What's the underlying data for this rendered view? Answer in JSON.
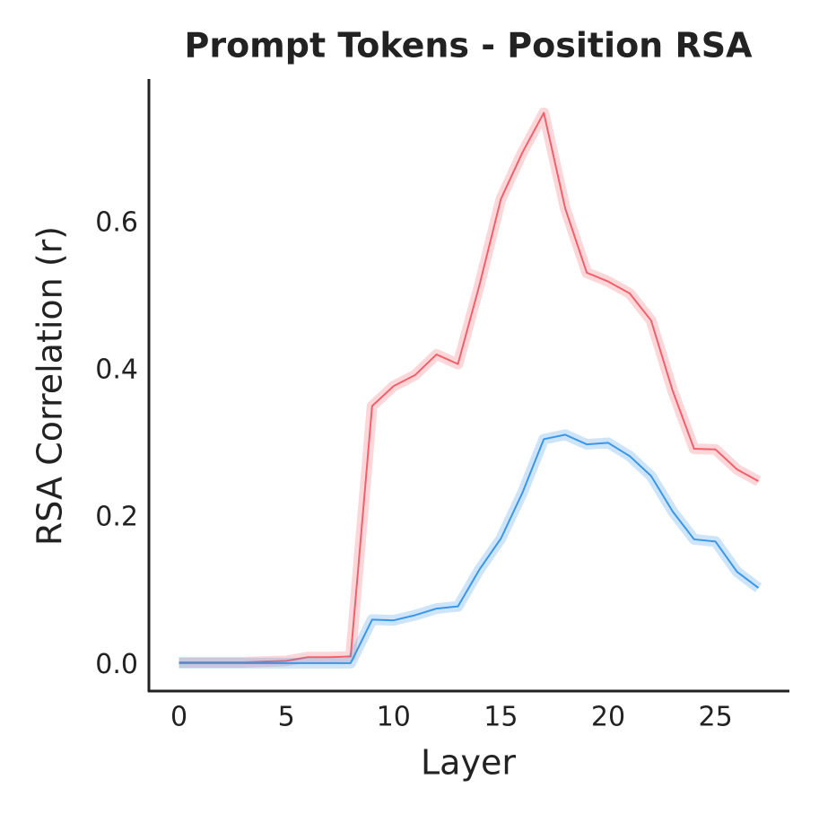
{
  "chart_data": {
    "type": "line",
    "title": "Prompt Tokens - Position RSA",
    "x_label": "Layer",
    "y_label": "RSA Correlation (r)",
    "x": [
      0,
      1,
      2,
      3,
      4,
      5,
      6,
      7,
      8,
      9,
      10,
      11,
      12,
      13,
      14,
      15,
      16,
      17,
      18,
      19,
      20,
      21,
      22,
      23,
      24,
      25,
      26,
      27
    ],
    "series": [
      {
        "color": "#f2606b",
        "values": [
          0.004,
          0.004,
          0.004,
          0.004,
          0.005,
          0.006,
          0.011,
          0.011,
          0.012,
          0.352,
          0.379,
          0.394,
          0.422,
          0.409,
          0.516,
          0.633,
          0.696,
          0.75,
          0.62,
          0.533,
          0.521,
          0.505,
          0.468,
          0.373,
          0.294,
          0.293,
          0.266,
          0.25
        ]
      },
      {
        "color": "#3a97e8",
        "values": [
          0.003,
          0.003,
          0.003,
          0.003,
          0.003,
          0.003,
          0.003,
          0.003,
          0.003,
          0.062,
          0.061,
          0.068,
          0.077,
          0.08,
          0.13,
          0.172,
          0.234,
          0.307,
          0.313,
          0.3,
          0.302,
          0.284,
          0.257,
          0.209,
          0.171,
          0.168,
          0.127,
          0.105
        ]
      }
    ],
    "xlim": [
      -1.4,
      28.4
    ],
    "xticks": [
      0,
      5,
      10,
      15,
      20,
      25
    ],
    "ylim": [
      -0.035,
      0.796
    ],
    "yticks": [
      {
        "value": 0,
        "label": "0.0"
      },
      0.2,
      0.4,
      0.6
    ],
    "grid": false
  }
}
